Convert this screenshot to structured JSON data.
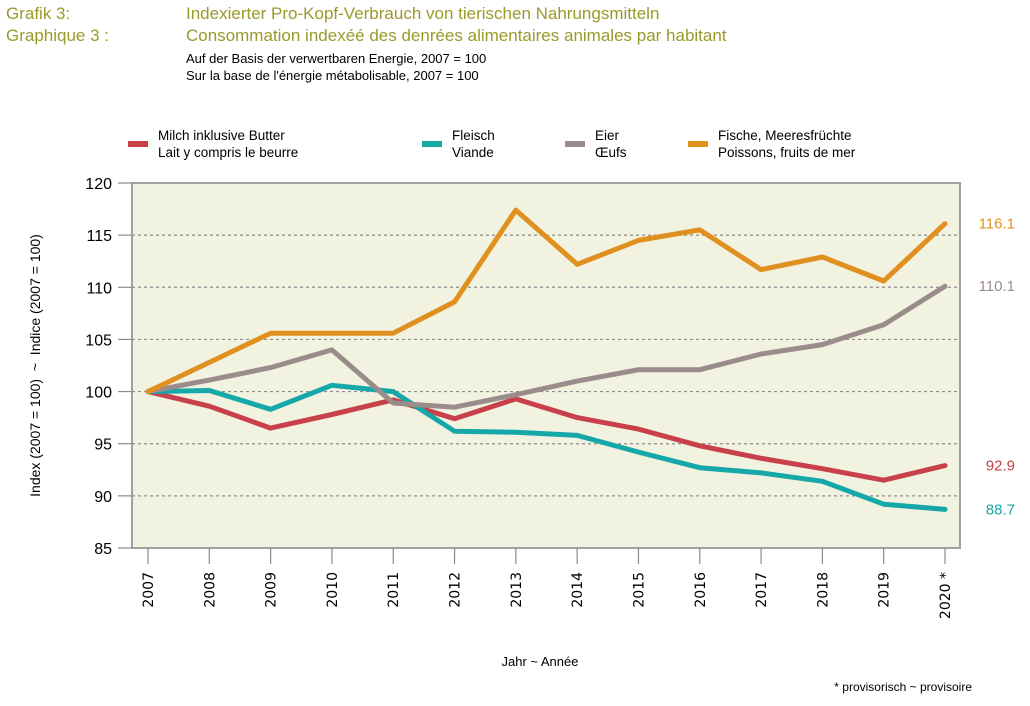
{
  "header": {
    "label_de": "Grafik 3:",
    "title_de": "Indexierter Pro-Kopf-Verbrauch von tierischen Nahrungsmitteln",
    "label_fr": "Graphique 3 :",
    "title_fr": "Consommation indexéé des denrées alimentaires animales par habitant",
    "subtitle_de": "Auf der Basis der verwertbaren Energie, 2007 = 100",
    "subtitle_fr": "Sur la base de l'énergie métabolisable, 2007 = 100"
  },
  "footnote": "* provisorisch  ~  provisoire",
  "chart_data": {
    "type": "line",
    "title": "Indexierter Pro-Kopf-Verbrauch von tierischen Nahrungsmitteln",
    "xlabel": "Jahr  ~  Année",
    "ylabel": "Index (2007 = 100)  ~  Indice (2007 = 100)",
    "ylim": [
      85,
      120
    ],
    "yticks": [
      "85",
      "90",
      "95",
      "100",
      "105",
      "110",
      "115",
      "120"
    ],
    "grid": "horizontal dotted",
    "legend": "top",
    "categories": [
      "2007",
      "2008",
      "2009",
      "2010",
      "2011",
      "2012",
      "2013",
      "2014",
      "2015",
      "2016",
      "2017",
      "2018",
      "2019",
      "2020 *"
    ],
    "series": [
      {
        "name_de": "Milch inklusive Butter",
        "name_fr": "Lait y compris le beurre",
        "color": "#c8404a",
        "values": [
          100,
          98.6,
          96.5,
          97.8,
          99.2,
          97.4,
          99.3,
          97.5,
          96.4,
          94.8,
          93.6,
          92.6,
          91.5,
          92.9
        ],
        "end_label": "92.9"
      },
      {
        "name_de": "Fleisch",
        "name_fr": "Viande",
        "color": "#16a8a8",
        "values": [
          100,
          100.1,
          98.3,
          100.6,
          100.0,
          96.2,
          96.1,
          95.8,
          94.2,
          92.7,
          92.2,
          91.4,
          89.2,
          88.7
        ],
        "end_label": "88.7"
      },
      {
        "name_de": "Eier",
        "name_fr": "Œufs",
        "color": "#9a8c8a",
        "values": [
          100,
          101.1,
          102.3,
          104.0,
          98.9,
          98.5,
          99.7,
          101.0,
          102.1,
          102.1,
          103.6,
          104.5,
          106.4,
          110.1
        ],
        "end_label": "110.1"
      },
      {
        "name_de": "Fische, Meeresfrüchte",
        "name_fr": "Poissons, fruits de mer",
        "color": "#e0901e",
        "values": [
          100,
          102.8,
          105.6,
          105.6,
          105.6,
          108.6,
          117.4,
          112.2,
          114.5,
          115.5,
          111.7,
          112.9,
          110.6,
          116.1
        ],
        "end_label": "116.1"
      }
    ]
  }
}
